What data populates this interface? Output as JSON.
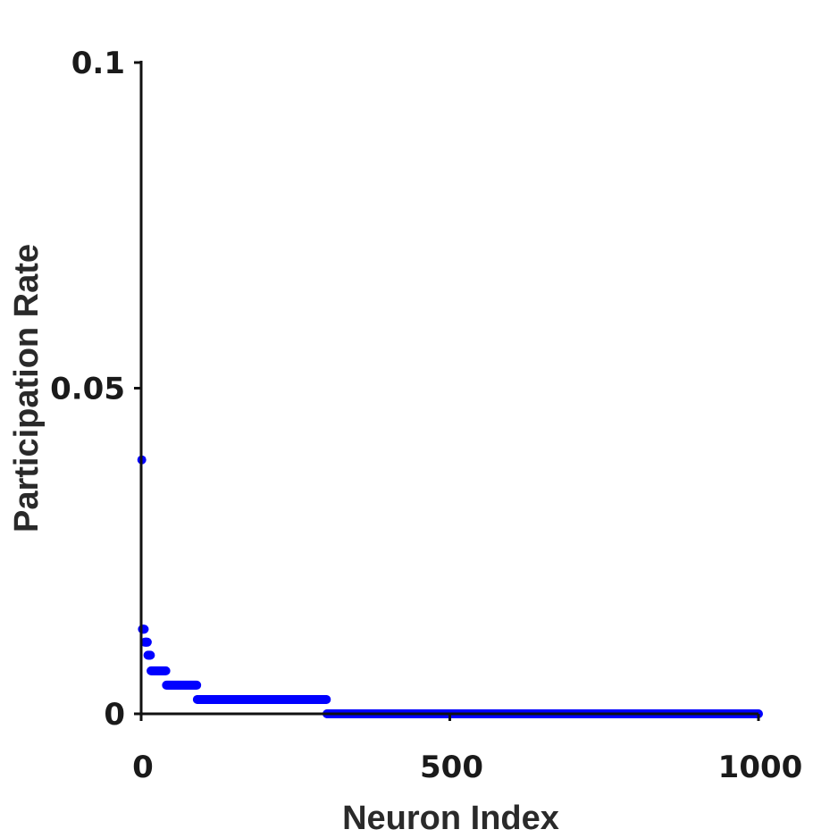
{
  "chart_data": {
    "type": "scatter",
    "xlabel": "Neuron Index",
    "ylabel": "Participation Rate",
    "xlim": [
      0,
      1000
    ],
    "ylim": [
      0,
      0.1
    ],
    "x_ticks": [
      0,
      500,
      1000
    ],
    "x_tick_labels": [
      "0",
      "500",
      "1000"
    ],
    "y_ticks": [
      0,
      0.05,
      0.1
    ],
    "y_tick_labels": [
      "0",
      "0.05",
      "0.1"
    ],
    "grid": false,
    "marker_color": "#0000ff",
    "series": [
      {
        "segments": [
          {
            "x_start": 1,
            "x_end": 1,
            "y": 0.039
          },
          {
            "x_start": 2,
            "x_end": 5,
            "y": 0.013
          },
          {
            "x_start": 6,
            "x_end": 10,
            "y": 0.011
          },
          {
            "x_start": 11,
            "x_end": 15,
            "y": 0.009
          },
          {
            "x_start": 16,
            "x_end": 40,
            "y": 0.0066
          },
          {
            "x_start": 41,
            "x_end": 90,
            "y": 0.0044
          },
          {
            "x_start": 91,
            "x_end": 300,
            "y": 0.0022
          },
          {
            "x_start": 301,
            "x_end": 1000,
            "y": 0
          }
        ]
      }
    ]
  }
}
